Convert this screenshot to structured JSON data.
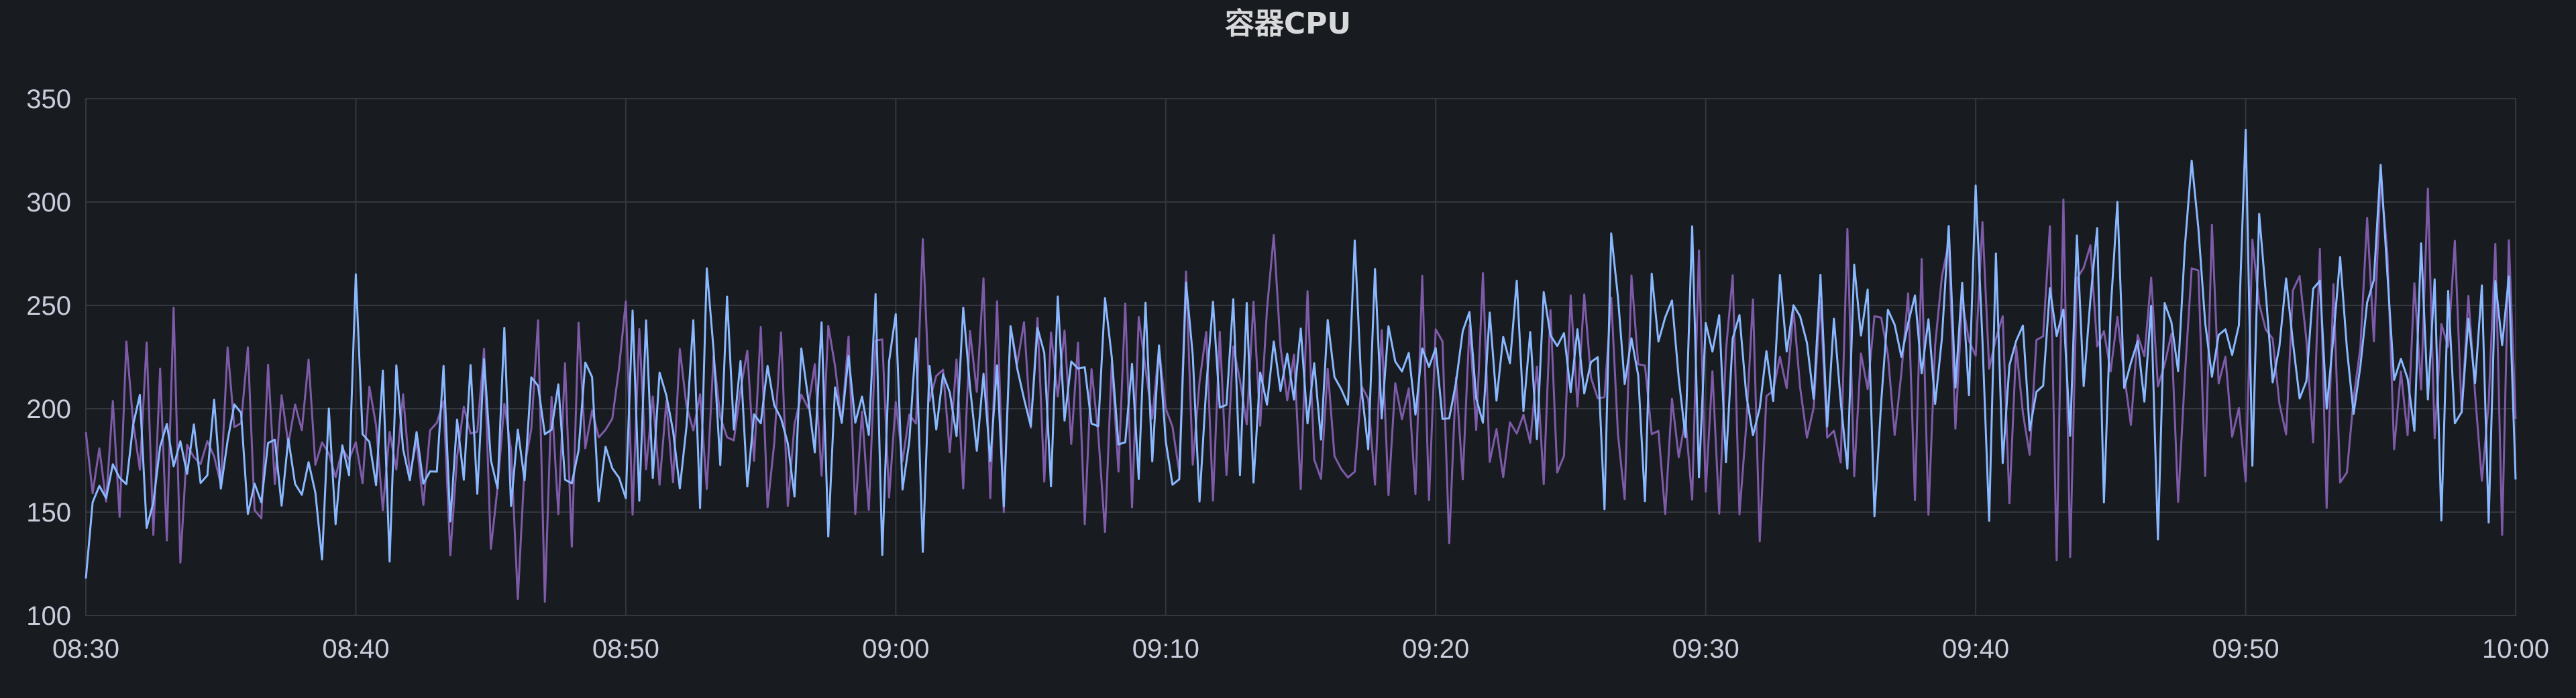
{
  "panel": {
    "title": "容器CPU"
  },
  "colors": {
    "background": "#181b1f",
    "grid": "#34373d",
    "text": "#ccccdc",
    "series_1": "#7e5ba8",
    "series_2": "#8ab8ff"
  },
  "chart_data": {
    "type": "line",
    "title": "容器CPU",
    "xlabel": "",
    "ylabel": "",
    "xlim": [
      "08:30",
      "10:00"
    ],
    "ylim": [
      100,
      350
    ],
    "grid": true,
    "x_ticks": [
      "08:30",
      "08:40",
      "08:50",
      "09:00",
      "09:10",
      "09:20",
      "09:30",
      "09:40",
      "09:50",
      "10:00"
    ],
    "y_ticks": [
      100,
      150,
      200,
      250,
      300,
      350
    ],
    "sample_interval_seconds": 15,
    "series": [
      {
        "color": "#7e5ba8",
        "trend_knots": [
          {
            "t": "08:30",
            "mean": 180,
            "spread": 30
          },
          {
            "t": "08:40",
            "mean": 182,
            "spread": 35
          },
          {
            "t": "08:50",
            "mean": 190,
            "spread": 35
          },
          {
            "t": "09:00",
            "mean": 205,
            "spread": 35
          },
          {
            "t": "09:10",
            "mean": 208,
            "spread": 38
          },
          {
            "t": "09:20",
            "mean": 210,
            "spread": 38
          },
          {
            "t": "09:30",
            "mean": 212,
            "spread": 38
          },
          {
            "t": "09:40",
            "mean": 218,
            "spread": 42
          },
          {
            "t": "09:50",
            "mean": 222,
            "spread": 45
          },
          {
            "t": "10:00",
            "mean": 225,
            "spread": 45
          }
        ],
        "peaks": [
          {
            "t": "08:46",
            "value": 108
          },
          {
            "t": "09:01",
            "value": 282
          },
          {
            "t": "09:14",
            "value": 284
          },
          {
            "t": "09:55",
            "value": 312
          }
        ]
      },
      {
        "color": "#8ab8ff",
        "trend_knots": [
          {
            "t": "08:30",
            "mean": 172,
            "spread": 25
          },
          {
            "t": "08:40",
            "mean": 180,
            "spread": 30
          },
          {
            "t": "08:50",
            "mean": 190,
            "spread": 32
          },
          {
            "t": "09:00",
            "mean": 205,
            "spread": 35
          },
          {
            "t": "09:10",
            "mean": 210,
            "spread": 35
          },
          {
            "t": "09:20",
            "mean": 212,
            "spread": 35
          },
          {
            "t": "09:30",
            "mean": 215,
            "spread": 38
          },
          {
            "t": "09:40",
            "mean": 225,
            "spread": 42
          },
          {
            "t": "09:50",
            "mean": 230,
            "spread": 45
          },
          {
            "t": "10:00",
            "mean": 230,
            "spread": 45
          }
        ],
        "peaks": [
          {
            "t": "08:40",
            "value": 265
          },
          {
            "t": "09:40",
            "value": 308
          },
          {
            "t": "09:48",
            "value": 320
          },
          {
            "t": "09:50",
            "value": 335
          },
          {
            "t": "09:55",
            "value": 318
          },
          {
            "t": "09:59",
            "value": 145
          }
        ]
      }
    ]
  }
}
